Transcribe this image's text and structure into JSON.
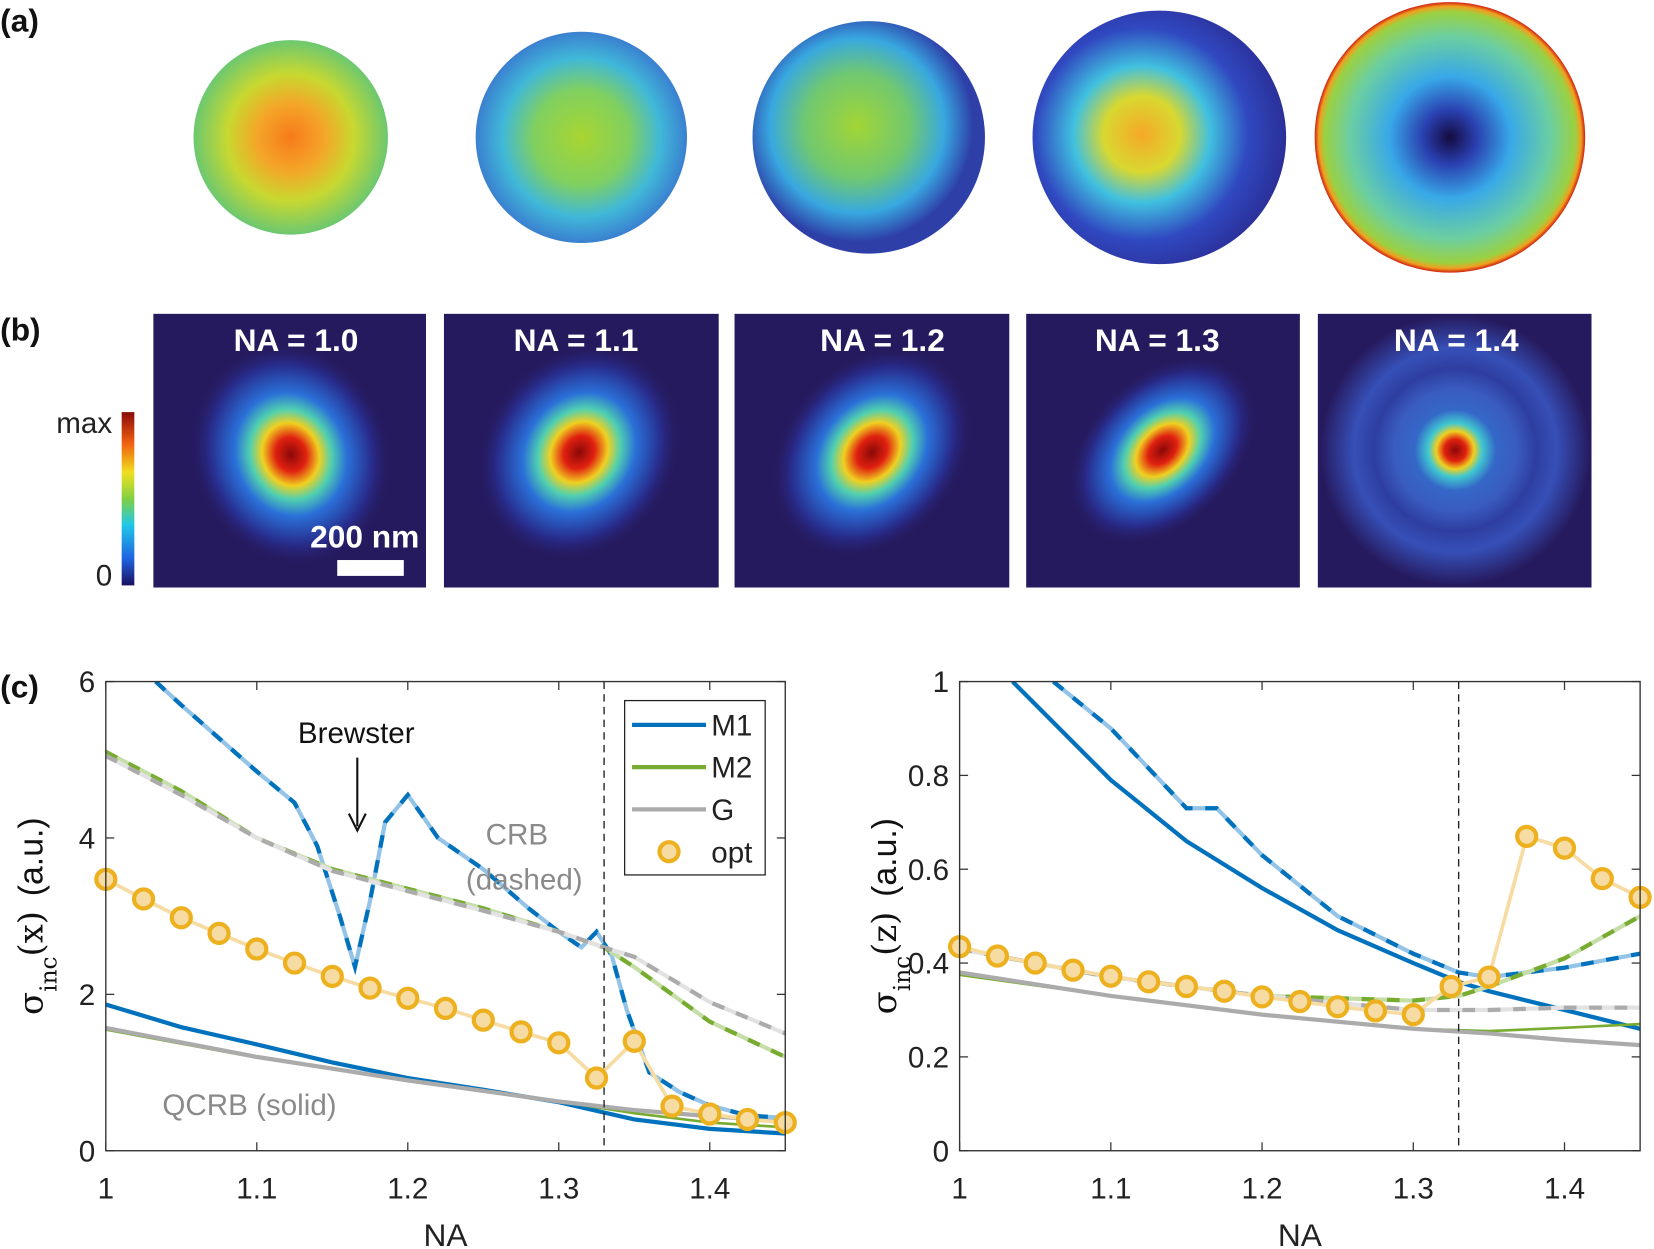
{
  "panel_labels": {
    "a": "(a)",
    "b": "(b)",
    "c": "(c)"
  },
  "pupil_maps": [
    "pupil-1",
    "pupil-2",
    "pupil-3",
    "pupil-4",
    "pupil-5"
  ],
  "psf_panels": [
    {
      "title": "NA = 1.0"
    },
    {
      "title": "NA = 1.1"
    },
    {
      "title": "NA = 1.2"
    },
    {
      "title": "NA = 1.3"
    },
    {
      "title": "NA = 1.4"
    }
  ],
  "colorbar": {
    "max_label": "max",
    "min_label": "0",
    "colormap": "jet"
  },
  "scalebar": {
    "label": "200 nm"
  },
  "colors": {
    "M1": "#0072BD",
    "M1_light": "#93c4e8",
    "M2": "#77AC30",
    "M2_light": "#c5dda6",
    "G": "#ababab",
    "G_light": "#e2e2e2",
    "opt_edge": "#EDB120",
    "opt_fill": "#f6dca2"
  },
  "legend": {
    "items": [
      "M1",
      "M2",
      "G",
      "opt"
    ],
    "placement": "top-right (left chart)"
  },
  "chart_data": [
    {
      "type": "line",
      "xlabel": "NA",
      "ylabel_main": "σ",
      "ylabel_sub": "inc",
      "ylabel_arg": "(x)",
      "ylabel_unit": "(a.u.)",
      "xlim": [
        1,
        1.45
      ],
      "ylim": [
        0,
        6
      ],
      "xticks": [
        "1",
        "1.1",
        "1.2",
        "1.3",
        "1.4"
      ],
      "xtick_values": [
        1,
        1.1,
        1.2,
        1.3,
        1.4
      ],
      "yticks": [
        "0",
        "2",
        "4",
        "6"
      ],
      "ytick_values": [
        0,
        2,
        4,
        6
      ],
      "vline": 1.33,
      "annotations": {
        "brewster": "Brewster",
        "crb": "CRB",
        "crb_sub": "(dashed)",
        "qcrb": "QCRB (solid)"
      },
      "series": [
        {
          "name": "M1",
          "style": "solid",
          "x": [
            1,
            1.05,
            1.1,
            1.15,
            1.2,
            1.25,
            1.3,
            1.35,
            1.4,
            1.45
          ],
          "y": [
            1.87,
            1.58,
            1.36,
            1.13,
            0.93,
            0.78,
            0.62,
            0.4,
            0.28,
            0.22
          ]
        },
        {
          "name": "M2",
          "style": "solid",
          "x": [
            1,
            1.1,
            1.2,
            1.3,
            1.35,
            1.4,
            1.45
          ],
          "y": [
            1.55,
            1.19,
            0.89,
            0.63,
            0.48,
            0.36,
            0.3
          ]
        },
        {
          "name": "G",
          "style": "solid",
          "x": [
            1,
            1.1,
            1.2,
            1.3,
            1.35,
            1.4,
            1.45
          ],
          "y": [
            1.57,
            1.2,
            0.9,
            0.63,
            0.52,
            0.44,
            0.38
          ]
        },
        {
          "name": "M1",
          "style": "dashed",
          "x": [
            1.033,
            1.05,
            1.1,
            1.125,
            1.14,
            1.155,
            1.165,
            1.175,
            1.185,
            1.2,
            1.22,
            1.25,
            1.28,
            1.3,
            1.315,
            1.325,
            1.335,
            1.345,
            1.36,
            1.38,
            1.4,
            1.425,
            1.45
          ],
          "y": [
            6,
            5.7,
            4.85,
            4.45,
            3.9,
            3.0,
            2.35,
            3.2,
            4.2,
            4.55,
            4.0,
            3.6,
            3.1,
            2.8,
            2.6,
            2.8,
            2.5,
            1.8,
            1.0,
            0.75,
            0.58,
            0.45,
            0.42
          ]
        },
        {
          "name": "M2",
          "style": "dashed",
          "x": [
            1,
            1.05,
            1.1,
            1.15,
            1.2,
            1.25,
            1.3,
            1.33,
            1.35,
            1.4,
            1.45
          ],
          "y": [
            5.1,
            4.6,
            4.0,
            3.6,
            3.35,
            3.1,
            2.8,
            2.6,
            2.35,
            1.65,
            1.2
          ]
        },
        {
          "name": "G",
          "style": "dashed",
          "x": [
            1,
            1.05,
            1.1,
            1.15,
            1.2,
            1.25,
            1.3,
            1.33,
            1.35,
            1.4,
            1.45
          ],
          "y": [
            5.05,
            4.55,
            4.0,
            3.58,
            3.32,
            3.07,
            2.8,
            2.6,
            2.48,
            1.9,
            1.5
          ]
        },
        {
          "name": "opt",
          "style": "markers",
          "x": [
            1,
            1.025,
            1.05,
            1.075,
            1.1,
            1.125,
            1.15,
            1.175,
            1.2,
            1.225,
            1.25,
            1.275,
            1.3,
            1.325,
            1.35,
            1.375,
            1.4,
            1.425,
            1.45
          ],
          "y": [
            3.47,
            3.22,
            2.98,
            2.78,
            2.58,
            2.4,
            2.23,
            2.08,
            1.95,
            1.82,
            1.67,
            1.52,
            1.38,
            0.93,
            1.4,
            0.57,
            0.47,
            0.4,
            0.36
          ]
        }
      ]
    },
    {
      "type": "line",
      "xlabel": "NA",
      "ylabel_main": "σ",
      "ylabel_sub": "inc",
      "ylabel_arg": "(z)",
      "ylabel_unit": "(a.u.)",
      "xlim": [
        1,
        1.45
      ],
      "ylim": [
        0,
        1
      ],
      "xticks": [
        "1",
        "1.1",
        "1.2",
        "1.3",
        "1.4"
      ],
      "xtick_values": [
        1,
        1.1,
        1.2,
        1.3,
        1.4
      ],
      "yticks": [
        "0",
        "0.2",
        "0.4",
        "0.6",
        "0.8",
        "1"
      ],
      "ytick_values": [
        0,
        0.2,
        0.4,
        0.6,
        0.8,
        1
      ],
      "vline": 1.33,
      "series": [
        {
          "name": "M1",
          "style": "solid",
          "x": [
            1.035,
            1.1,
            1.15,
            1.2,
            1.25,
            1.3,
            1.33,
            1.35,
            1.4,
            1.45
          ],
          "y": [
            1,
            0.79,
            0.66,
            0.56,
            0.47,
            0.4,
            0.36,
            0.34,
            0.3,
            0.26
          ]
        },
        {
          "name": "M2",
          "style": "solid",
          "x": [
            1,
            1.1,
            1.2,
            1.3,
            1.35,
            1.4,
            1.45
          ],
          "y": [
            0.375,
            0.33,
            0.29,
            0.26,
            0.255,
            0.262,
            0.27
          ]
        },
        {
          "name": "G",
          "style": "solid",
          "x": [
            1,
            1.1,
            1.2,
            1.3,
            1.35,
            1.4,
            1.45
          ],
          "y": [
            0.38,
            0.33,
            0.29,
            0.26,
            0.25,
            0.236,
            0.225
          ]
        },
        {
          "name": "M1",
          "style": "dashed",
          "x": [
            1.062,
            1.1,
            1.15,
            1.17,
            1.2,
            1.25,
            1.3,
            1.33,
            1.35,
            1.4,
            1.45
          ],
          "y": [
            1,
            0.9,
            0.73,
            0.73,
            0.63,
            0.5,
            0.42,
            0.38,
            0.37,
            0.39,
            0.42
          ]
        },
        {
          "name": "M2",
          "style": "dashed",
          "x": [
            1,
            1.1,
            1.2,
            1.3,
            1.33,
            1.35,
            1.4,
            1.45
          ],
          "y": [
            0.43,
            0.37,
            0.33,
            0.32,
            0.33,
            0.35,
            0.41,
            0.5
          ]
        },
        {
          "name": "G",
          "style": "dashed",
          "x": [
            1,
            1.1,
            1.2,
            1.3,
            1.35,
            1.4,
            1.45
          ],
          "y": [
            0.43,
            0.37,
            0.33,
            0.3,
            0.3,
            0.305,
            0.305
          ]
        },
        {
          "name": "opt",
          "style": "markers",
          "x": [
            1,
            1.025,
            1.05,
            1.075,
            1.1,
            1.125,
            1.15,
            1.175,
            1.2,
            1.225,
            1.25,
            1.275,
            1.3,
            1.325,
            1.35,
            1.375,
            1.4,
            1.425,
            1.45
          ],
          "y": [
            0.435,
            0.415,
            0.4,
            0.385,
            0.372,
            0.36,
            0.35,
            0.34,
            0.328,
            0.318,
            0.307,
            0.298,
            0.29,
            0.35,
            0.37,
            0.67,
            0.645,
            0.58,
            0.54
          ]
        }
      ]
    }
  ]
}
